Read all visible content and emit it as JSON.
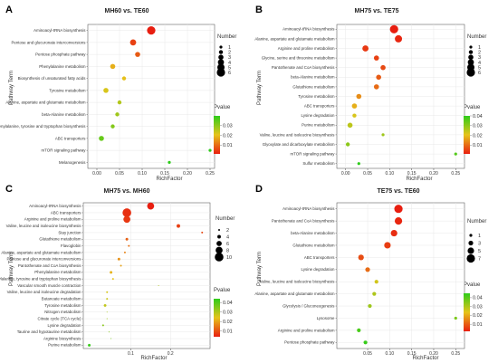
{
  "colors": {
    "high_p": "#2ecc1a",
    "low_p": "#e81e10",
    "grid": "#e8e8e8",
    "axis": "#444444"
  },
  "chart_data": [
    {
      "type": "scatter",
      "panel": "A",
      "title": "MH60 vs. TE60",
      "xlabel": "RichFactor",
      "ylabel": "Pathway Term",
      "xlim": [
        -0.02,
        0.26
      ],
      "xticks": [
        "0.00",
        "0.05",
        "0.10",
        "0.15",
        "0.20",
        "0.25"
      ],
      "xtick_values": [
        0,
        0.05,
        0.1,
        0.15,
        0.2,
        0.25
      ],
      "terms": [
        "Aminoacyl-tRNA biosynthesis",
        "Pentose and glucuronate interconversions",
        "Pentose phosphate pathway",
        "Phenylalanine metabolism",
        "Biosynthesis of unsaturated fatty acids",
        "Tyrosine metabolism",
        "Alanine, aspartate and glutamate metabolism",
        "beta-Alanine metabolism",
        "Phenylalanine, tyrosine and tryptophan biosynthesis",
        "ABC transporters",
        "mTOR signaling pathway",
        "Melanogenesis"
      ],
      "richfactor": [
        0.12,
        0.08,
        0.09,
        0.035,
        0.06,
        0.02,
        0.05,
        0.045,
        0.035,
        0.01,
        0.25,
        0.16
      ],
      "number": [
        6,
        4,
        3,
        3,
        2,
        3,
        2,
        2,
        2,
        3,
        1,
        1
      ],
      "pvalue": [
        0.001,
        0.005,
        0.008,
        0.018,
        0.02,
        0.022,
        0.026,
        0.028,
        0.031,
        0.034,
        0.04,
        0.043
      ],
      "legend_number": {
        "title": "Number",
        "values": [
          1,
          2,
          3,
          4,
          5,
          6
        ]
      },
      "legend_pvalue": {
        "title": "Pvalue",
        "ticks": [
          "0.03",
          "0.02",
          "0.01"
        ],
        "tick_values": [
          0.03,
          0.02,
          0.01
        ],
        "range": [
          0.001,
          0.04
        ]
      }
    },
    {
      "type": "scatter",
      "panel": "B",
      "title": "MH75 vs. TE75",
      "xlabel": "RichFactor",
      "ylabel": "Pathway Term",
      "xlim": [
        -0.02,
        0.27
      ],
      "xticks": [
        "0.00",
        "0.05",
        "0.10",
        "0.15",
        "0.20",
        "0.25"
      ],
      "xtick_values": [
        0,
        0.05,
        0.1,
        0.15,
        0.2,
        0.25
      ],
      "terms": [
        "Aminoacyl-tRNA biosynthesis",
        "Alanine, aspartate and glutamate metabolism",
        "Arginine and proline metabolism",
        "Glycine, serine and threonine metabolism",
        "Pantothenate and CoA biosynthesis",
        "beta-Alanine metabolism",
        "Glutathione metabolism",
        "Tyrosine metabolism",
        "ABC transporters",
        "Lysine degradation",
        "Purine metabolism",
        "Valine, leucine and isoleucine biosynthesis",
        "Glyoxylate and dicarboxylate metabolism",
        "mTOR signaling pathway",
        "Sulfur metabolism"
      ],
      "richfactor": [
        0.11,
        0.12,
        0.045,
        0.07,
        0.085,
        0.075,
        0.07,
        0.03,
        0.02,
        0.02,
        0.01,
        0.085,
        0.005,
        0.25,
        0.03
      ],
      "number": [
        6,
        5,
        4,
        3,
        3,
        3,
        3,
        3,
        3,
        2,
        3,
        1,
        2,
        1,
        1
      ],
      "pvalue": [
        0.001,
        0.002,
        0.004,
        0.005,
        0.006,
        0.008,
        0.01,
        0.014,
        0.018,
        0.022,
        0.025,
        0.028,
        0.03,
        0.036,
        0.04
      ],
      "legend_number": {
        "title": "Number",
        "values": [
          1,
          2,
          3,
          4,
          5,
          6
        ]
      },
      "legend_pvalue": {
        "title": "Pvalue",
        "ticks": [
          "0.04",
          "0.03",
          "0.02",
          "0.01"
        ],
        "tick_values": [
          0.04,
          0.03,
          0.02,
          0.01
        ],
        "range": [
          0.001,
          0.04
        ]
      }
    },
    {
      "type": "scatter",
      "panel": "C",
      "title": "MH75 vs. MH60",
      "xlabel": "RichFactor",
      "ylabel": "Pathway Term",
      "xlim": [
        -0.02,
        0.3
      ],
      "xticks": [
        "0.1",
        "0.2"
      ],
      "xtick_values": [
        0.1,
        0.2
      ],
      "terms": [
        "Aminoacyl-tRNA biosynthesis",
        "ABC transporters",
        "Arginine and proline metabolism",
        "Valine, leucine and isoleucine biosynthesis",
        "Stay junction",
        "Glutathione metabolism",
        "Flavoglobin",
        "Alanine, aspartate and glutamate metabolism",
        "Pentose and glucuronate interconversions",
        "Pantothenate and CoA biosynthesis",
        "Phenylalanine metabolism",
        "Phenylalanine, tyrosine and tryptophan biosynthesis",
        "Vascular smooth muscle contraction",
        "Valine, leucine and isoleucine degradation",
        "Butanoate metabolism",
        "Tyrosine metabolism",
        "Nitrogen metabolism",
        "Citrate cycle (TCA cycle)",
        "Lysine degradation",
        "Taurine and hypotaurine metabolism",
        "Arginine biosynthesis",
        "Purine metabolism"
      ],
      "richfactor": [
        0.15,
        0.09,
        0.09,
        0.22,
        0.28,
        0.09,
        0.095,
        0.085,
        0.07,
        0.075,
        0.05,
        0.055,
        0.17,
        0.04,
        0.04,
        0.035,
        0.04,
        0.04,
        0.03,
        0.045,
        0.05,
        -0.005
      ],
      "number": [
        8,
        10,
        8,
        4,
        2,
        3,
        2,
        2,
        3,
        2,
        3,
        2,
        1,
        2,
        2,
        3,
        1,
        1,
        2,
        1,
        1,
        3
      ],
      "pvalue": [
        0.004,
        0.006,
        0.007,
        0.008,
        0.009,
        0.012,
        0.014,
        0.016,
        0.018,
        0.02,
        0.022,
        0.024,
        0.03,
        0.026,
        0.027,
        0.028,
        0.031,
        0.032,
        0.034,
        0.035,
        0.036,
        0.043
      ],
      "legend_number": {
        "title": "Number",
        "values": [
          2,
          4,
          6,
          8,
          10
        ]
      },
      "legend_pvalue": {
        "title": "Pvalue",
        "ticks": [
          "0.04",
          "0.03",
          "0.02",
          "0.01"
        ],
        "tick_values": [
          0.04,
          0.03,
          0.02,
          0.01
        ],
        "range": [
          0.004,
          0.044
        ]
      }
    },
    {
      "type": "scatter",
      "panel": "D",
      "title": "TE75 vs. TE60",
      "xlabel": "RichFactor",
      "ylabel": "Pathway Term",
      "xlim": [
        -0.02,
        0.27
      ],
      "xticks": [
        "0.05",
        "0.10",
        "0.15",
        "0.20",
        "0.25"
      ],
      "xtick_values": [
        0.05,
        0.1,
        0.15,
        0.2,
        0.25
      ],
      "terms": [
        "Aminoacyl-tRNA biosynthesis",
        "Pantothenate and CoA biosynthesis",
        "beta-Alanine metabolism",
        "Glutathione metabolism",
        "ABC transporters",
        "Lysine degradation",
        "Valine, leucine and isoleucine biosynthesis",
        "Alanine, aspartate and glutamate metabolism",
        "Glycolysis / Gluconeogenesis",
        "Lysosome",
        "Arginine and proline metabolism",
        "Pentose phosphate pathway"
      ],
      "richfactor": [
        0.12,
        0.12,
        0.11,
        0.095,
        0.035,
        0.05,
        0.07,
        0.065,
        0.055,
        0.25,
        0.03,
        0.045
      ],
      "number": [
        7,
        6,
        5,
        5,
        4,
        3,
        2,
        2,
        2,
        1,
        2,
        2
      ],
      "pvalue": [
        0.002,
        0.003,
        0.004,
        0.006,
        0.008,
        0.012,
        0.026,
        0.03,
        0.032,
        0.036,
        0.042,
        0.044
      ],
      "legend_number": {
        "title": "Number",
        "values": [
          1,
          3,
          5,
          7
        ]
      },
      "legend_pvalue": {
        "title": "Pvalue",
        "ticks": [
          "0.04",
          "0.03",
          "0.02",
          "0.01"
        ],
        "tick_values": [
          0.04,
          0.03,
          0.02,
          0.01
        ],
        "range": [
          0.002,
          0.045
        ]
      }
    }
  ]
}
